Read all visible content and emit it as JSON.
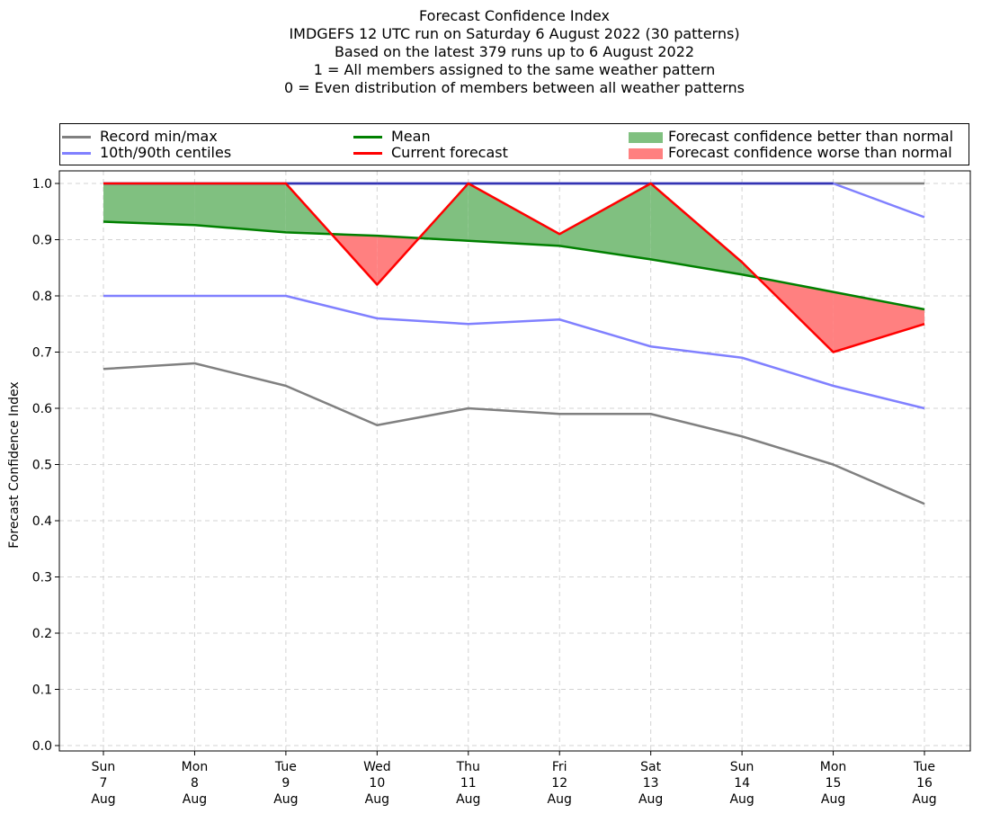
{
  "chart_data": {
    "type": "line",
    "title_lines": [
      "Forecast Confidence Index",
      "IMDGEFS 12 UTC run on Saturday 6 August 2022 (30 patterns)",
      "Based on the latest 379 runs up to 6 August 2022",
      "1 = All members assigned to the same weather pattern",
      "0 = Even distribution of members between all weather patterns"
    ],
    "ylabel": "Forecast Confidence Index",
    "xlabel": "",
    "ylim": [
      0.0,
      1.0
    ],
    "y_ticks": [
      "0.0",
      "0.1",
      "0.2",
      "0.3",
      "0.4",
      "0.5",
      "0.6",
      "0.7",
      "0.8",
      "0.9",
      "1.0"
    ],
    "categories": [
      [
        "Sun",
        "7",
        "Aug"
      ],
      [
        "Mon",
        "8",
        "Aug"
      ],
      [
        "Tue",
        "9",
        "Aug"
      ],
      [
        "Wed",
        "10",
        "Aug"
      ],
      [
        "Thu",
        "11",
        "Aug"
      ],
      [
        "Fri",
        "12",
        "Aug"
      ],
      [
        "Sat",
        "13",
        "Aug"
      ],
      [
        "Sun",
        "14",
        "Aug"
      ],
      [
        "Mon",
        "15",
        "Aug"
      ],
      [
        "Tue",
        "16",
        "Aug"
      ]
    ],
    "grid": true,
    "legend_placement": "top",
    "series": {
      "record_max": [
        1.0,
        1.0,
        1.0,
        1.0,
        1.0,
        1.0,
        1.0,
        1.0,
        1.0,
        1.0
      ],
      "record_min": [
        0.67,
        0.68,
        0.64,
        0.57,
        0.6,
        0.59,
        0.59,
        0.55,
        0.5,
        0.43
      ],
      "p90": [
        1.0,
        1.0,
        1.0,
        1.0,
        1.0,
        1.0,
        1.0,
        1.0,
        1.0,
        0.94
      ],
      "p10": [
        0.8,
        0.8,
        0.8,
        0.76,
        0.75,
        0.758,
        0.71,
        0.69,
        0.64,
        0.6
      ],
      "mean": [
        0.932,
        0.926,
        0.913,
        0.907,
        0.898,
        0.889,
        0.865,
        0.838,
        0.807,
        0.776
      ],
      "current": [
        1.0,
        1.0,
        1.0,
        0.82,
        1.0,
        0.91,
        1.0,
        0.86,
        0.7,
        0.75
      ]
    },
    "legend": [
      {
        "label": "Record min/max",
        "kind": "line",
        "color": "#808080"
      },
      {
        "label": "Mean",
        "kind": "line",
        "color": "#008000"
      },
      {
        "label": "Forecast confidence better than normal",
        "kind": "patch",
        "color": "#80c080"
      },
      {
        "label": "10th/90th centiles",
        "kind": "line",
        "color": "#8080ff"
      },
      {
        "label": "Current forecast",
        "kind": "line",
        "color": "#ff0000"
      },
      {
        "label": "Forecast confidence worse than normal",
        "kind": "patch",
        "color": "#ff8080"
      }
    ],
    "colors": {
      "record": "#808080",
      "centiles": "#8080ff",
      "overlap": "#3333b3",
      "mean": "#008000",
      "current": "#ff0000",
      "better_fill": "#80c080",
      "worse_fill": "#ff8080",
      "grid": "#d3d3d3"
    }
  }
}
